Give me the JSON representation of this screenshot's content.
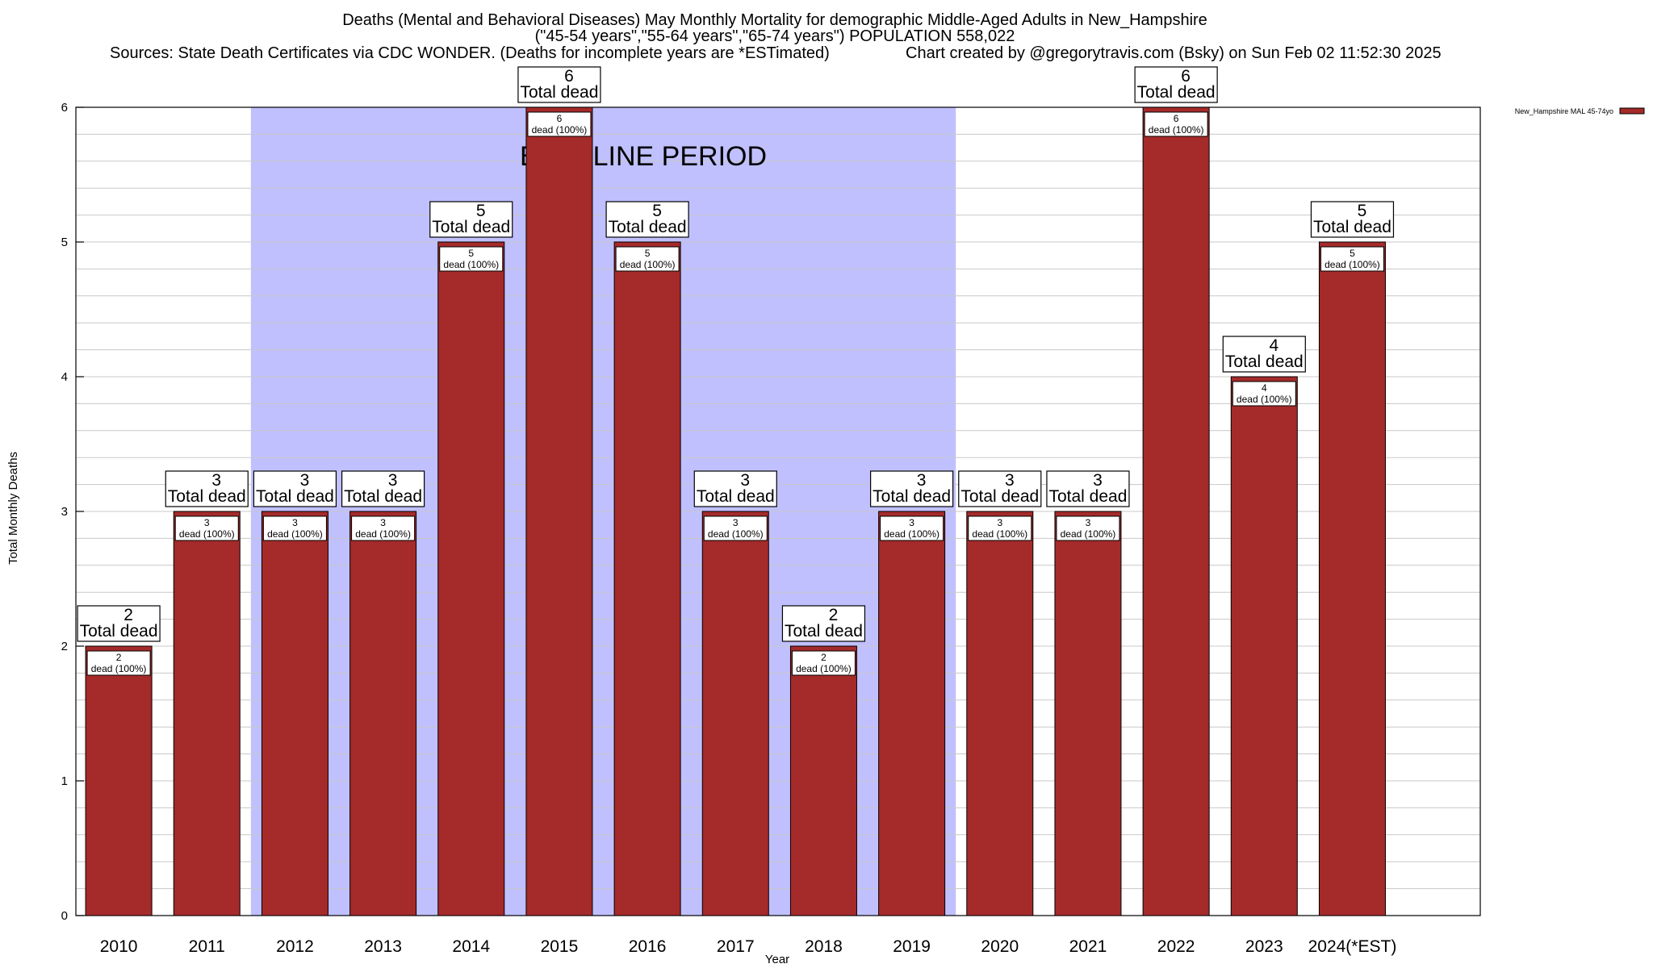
{
  "chart_data": {
    "type": "bar",
    "title_lines": [
      "Deaths (Mental and Behavioral Diseases) May Monthly Mortality for demographic Middle-Aged Adults in New_Hampshire",
      "(\"45-54 years\",\"55-64 years\",\"65-74 years\") POPULATION 558,022",
      "Sources: State Death Certificates via CDC WONDER. (Deaths for incomplete years are *ESTimated)",
      "Chart created by @gregorytravis.com (Bsky) on Sun Feb 02 11:52:30 2025"
    ],
    "xlabel": "Year",
    "ylabel": "Total Monthly Deaths",
    "categories": [
      "2010",
      "2011",
      "2012",
      "2013",
      "2014",
      "2015",
      "2016",
      "2017",
      "2018",
      "2019",
      "2020",
      "2021",
      "2022",
      "2023",
      "2024(*EST)"
    ],
    "series": [
      {
        "name": "New_Hampshire MAL 45-74yo",
        "values": [
          2,
          3,
          3,
          3,
          5,
          6,
          5,
          3,
          2,
          3,
          3,
          3,
          6,
          4,
          5
        ]
      }
    ],
    "ylim": [
      0,
      6
    ],
    "yticks": [
      0,
      1,
      2,
      3,
      4,
      5,
      6
    ],
    "grid": true,
    "legend_position": "top-right",
    "total_label": "Total dead",
    "inner_label_suffix": "dead (100%)",
    "baseline": {
      "label": "BASELINE PERIOD",
      "start_category": "2012",
      "end_category": "2019"
    },
    "colors": {
      "bar": "#a52a2a",
      "baseline_shade": "#c0c0ff",
      "grid": "#c8c8c8"
    }
  }
}
